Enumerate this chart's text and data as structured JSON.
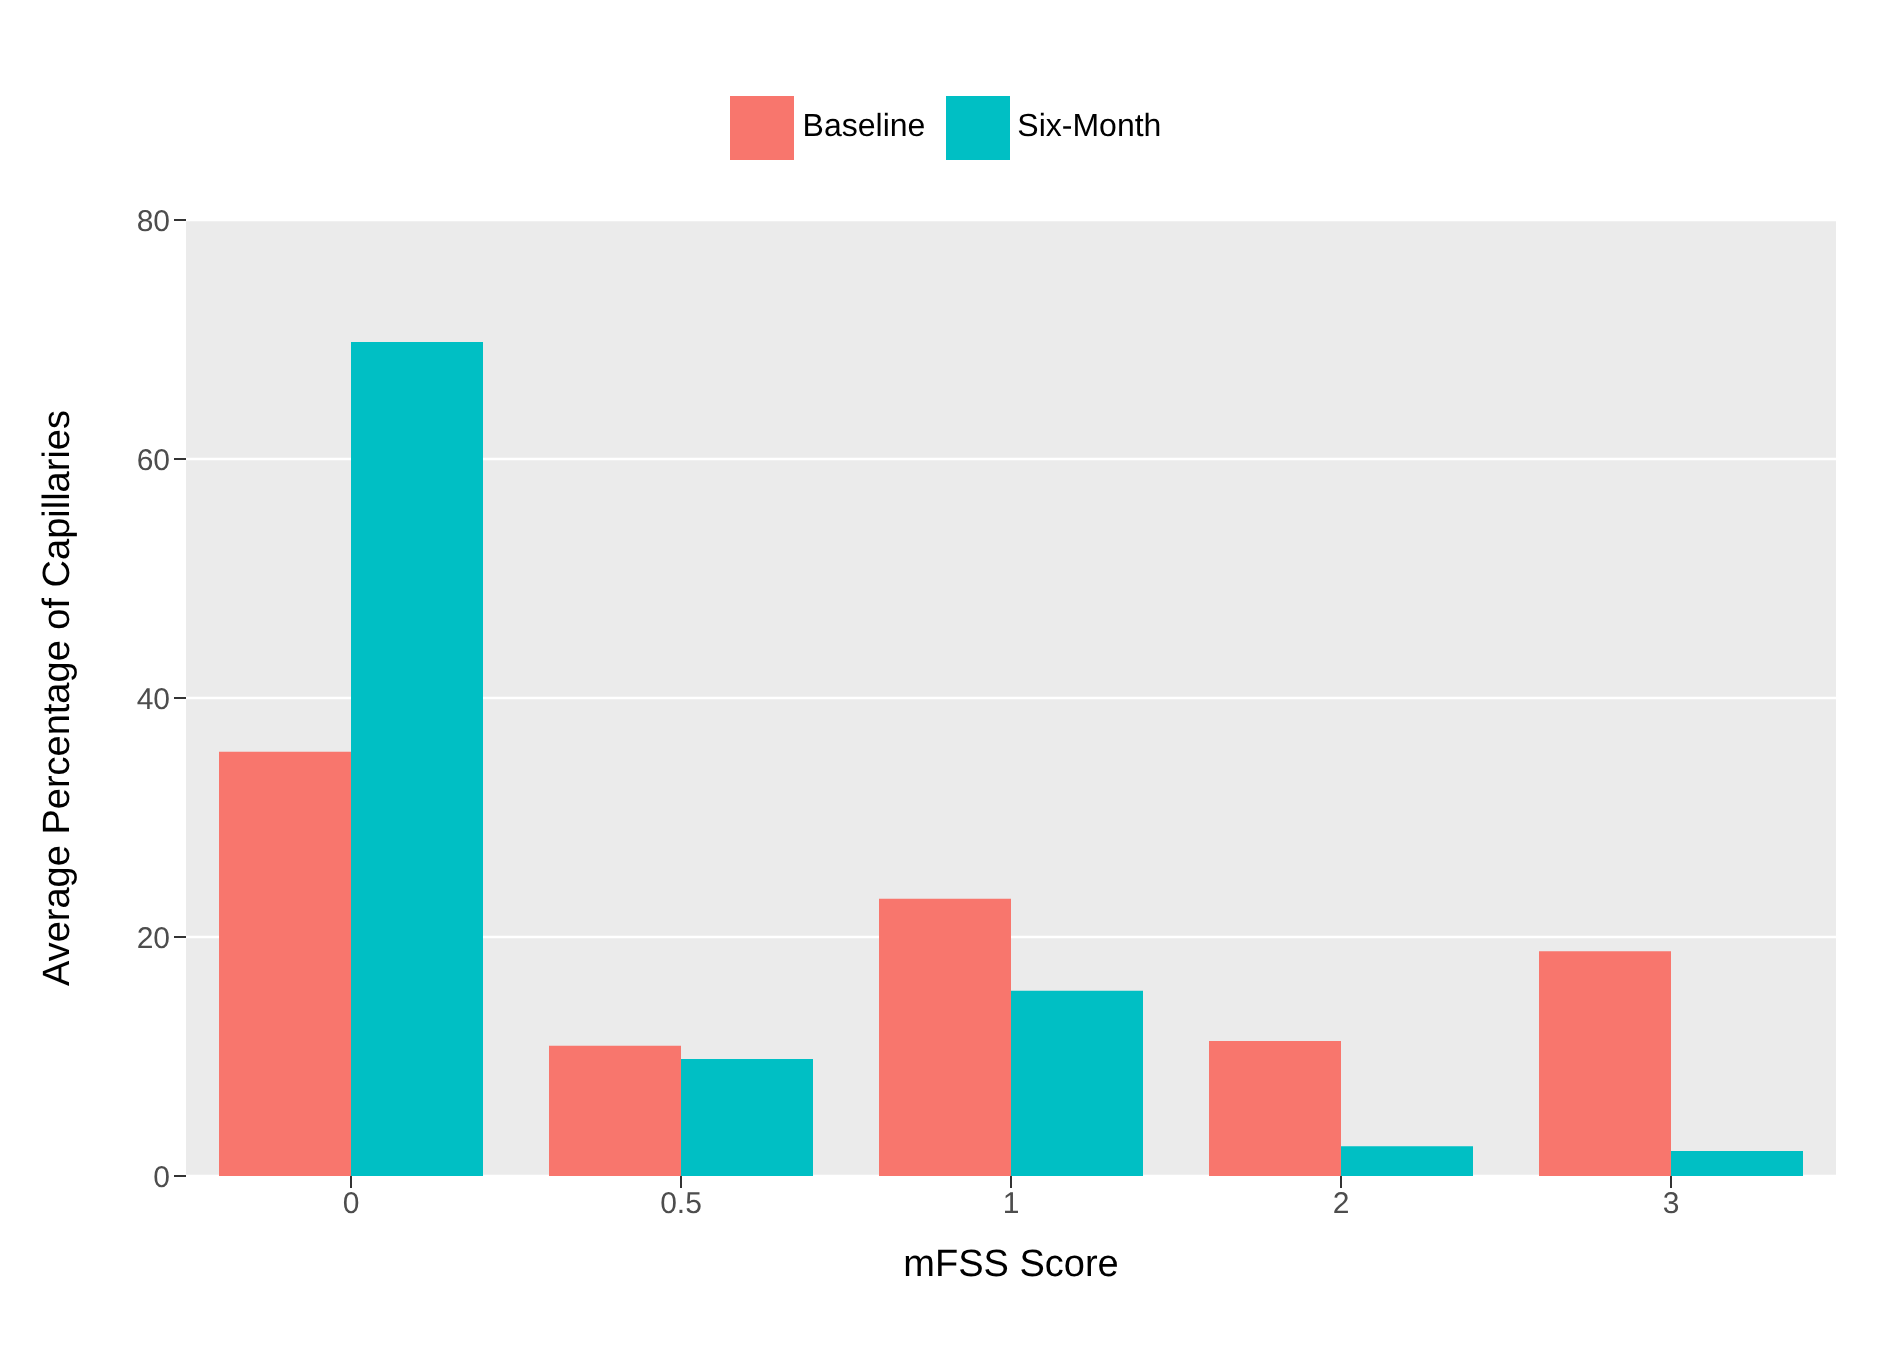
{
  "chart_data": {
    "type": "bar",
    "xlabel": "mFSS Score",
    "ylabel": "Average Percentage of Capillaries",
    "categories": [
      "0",
      "0.5",
      "1",
      "2",
      "3"
    ],
    "series": [
      {
        "name": "Baseline",
        "color": "#f8766d",
        "values": [
          35.5,
          10.9,
          23.2,
          11.3,
          18.8
        ]
      },
      {
        "name": "Six-Month",
        "color": "#00bfc4",
        "values": [
          69.8,
          9.8,
          15.5,
          2.5,
          2.1
        ]
      }
    ],
    "ylim": [
      0,
      80
    ],
    "yticks": [
      0,
      20,
      40,
      60,
      80
    ],
    "grid": "y",
    "legend": "top"
  }
}
